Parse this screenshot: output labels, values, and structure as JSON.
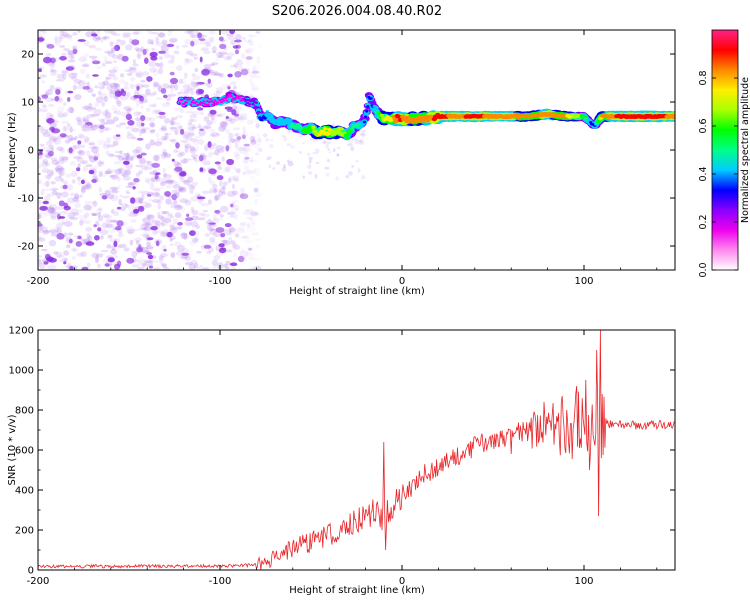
{
  "title": "S206.2026.004.08.40.R02",
  "colors": {
    "snr_line": "#e8262a",
    "noise": "#8a2be2",
    "colormap": [
      "#ffffff",
      "#ff88ee",
      "#ee00ee",
      "#8800ff",
      "#0000ff",
      "#00ccff",
      "#00ff88",
      "#00ff00",
      "#aaff00",
      "#ffee00",
      "#ff8800",
      "#ff0000",
      "#ff2288"
    ]
  },
  "chart_data": [
    {
      "type": "heatmap",
      "name": "spectrogram",
      "xlabel": "Height of straight line (km)",
      "ylabel": "Frequency (Hz)",
      "xlim": [
        -200,
        150
      ],
      "ylim": [
        -25,
        25
      ],
      "xticks": [
        -200,
        -100,
        0,
        100
      ],
      "yticks": [
        -20,
        -10,
        0,
        10,
        20
      ],
      "noise_region_x": [
        -200,
        -78
      ],
      "ridge": {
        "x": [
          -122,
          -100,
          -95,
          -88,
          -83,
          -80,
          -78,
          -76,
          -74,
          -70,
          -66,
          -62,
          -58,
          -54,
          -50,
          -46,
          -42,
          -38,
          -34,
          -30,
          -26,
          -22,
          -20,
          -18,
          -16,
          -14,
          -12,
          -10,
          -6,
          -2,
          2,
          10,
          20,
          30,
          40,
          50,
          60,
          70,
          80,
          90,
          100,
          104,
          106,
          110,
          120,
          130,
          140,
          150
        ],
        "freq": [
          10,
          10,
          11,
          10.5,
          10,
          9.5,
          7,
          6.5,
          7.5,
          5.5,
          6,
          5.5,
          5,
          4,
          4.5,
          3.5,
          4,
          3.5,
          4,
          3,
          5,
          5,
          7,
          11.5,
          9,
          8,
          7,
          6.5,
          6.5,
          6.5,
          6.5,
          6.5,
          7,
          7,
          7,
          7,
          7,
          7,
          7.5,
          7,
          7,
          5.5,
          5,
          7,
          7,
          7,
          7,
          7
        ],
        "amp": [
          0.15,
          0.15,
          0.2,
          0.2,
          0.25,
          0.25,
          0.3,
          0.35,
          0.4,
          0.45,
          0.4,
          0.45,
          0.5,
          0.55,
          0.6,
          0.7,
          0.75,
          0.7,
          0.7,
          0.6,
          0.5,
          0.45,
          0.3,
          0.3,
          0.35,
          0.5,
          0.6,
          0.7,
          0.75,
          0.9,
          0.85,
          0.8,
          0.9,
          0.85,
          0.9,
          0.85,
          0.85,
          0.8,
          0.85,
          0.8,
          0.6,
          0.3,
          0.35,
          0.8,
          0.9,
          0.95,
          0.9,
          0.85
        ]
      },
      "colorbar": {
        "label": "Normalized spectral amplitude",
        "range": [
          0,
          1
        ],
        "ticks": [
          "0.0",
          "0.2",
          "0.4",
          "0.6",
          "0.8"
        ]
      }
    },
    {
      "type": "line",
      "name": "snr",
      "xlabel": "Height of straight line (km)",
      "ylabel": "SNR (10 * v/v)",
      "xlim": [
        -200,
        150
      ],
      "ylim": [
        0,
        1200
      ],
      "xticks": [
        -200,
        -100,
        0,
        100
      ],
      "yticks": [
        0,
        200,
        400,
        600,
        800,
        1000,
        1200
      ],
      "trend": {
        "x": [
          -200,
          -100,
          -80,
          -70,
          -60,
          -50,
          -40,
          -30,
          -20,
          -15,
          -12,
          -10,
          -5,
          0,
          10,
          20,
          30,
          40,
          50,
          60,
          70,
          80,
          90,
          100,
          105,
          110,
          115,
          120,
          150
        ],
        "y": [
          18,
          20,
          25,
          60,
          110,
          140,
          170,
          220,
          270,
          300,
          240,
          260,
          320,
          380,
          460,
          520,
          570,
          620,
          650,
          680,
          700,
          710,
          720,
          730,
          730,
          740,
          730,
          725,
          725
        ]
      },
      "spikes": [
        {
          "x": -10,
          "y": 640
        },
        {
          "x": -9,
          "y": 100
        },
        {
          "x": 60,
          "y": 580
        },
        {
          "x": 78,
          "y": 840
        },
        {
          "x": 88,
          "y": 870
        },
        {
          "x": 96,
          "y": 920
        },
        {
          "x": 101,
          "y": 950
        },
        {
          "x": 103,
          "y": 500
        },
        {
          "x": 107,
          "y": 1100
        },
        {
          "x": 108,
          "y": 270
        },
        {
          "x": 109,
          "y": 1200
        },
        {
          "x": 110,
          "y": 880
        }
      ]
    }
  ]
}
